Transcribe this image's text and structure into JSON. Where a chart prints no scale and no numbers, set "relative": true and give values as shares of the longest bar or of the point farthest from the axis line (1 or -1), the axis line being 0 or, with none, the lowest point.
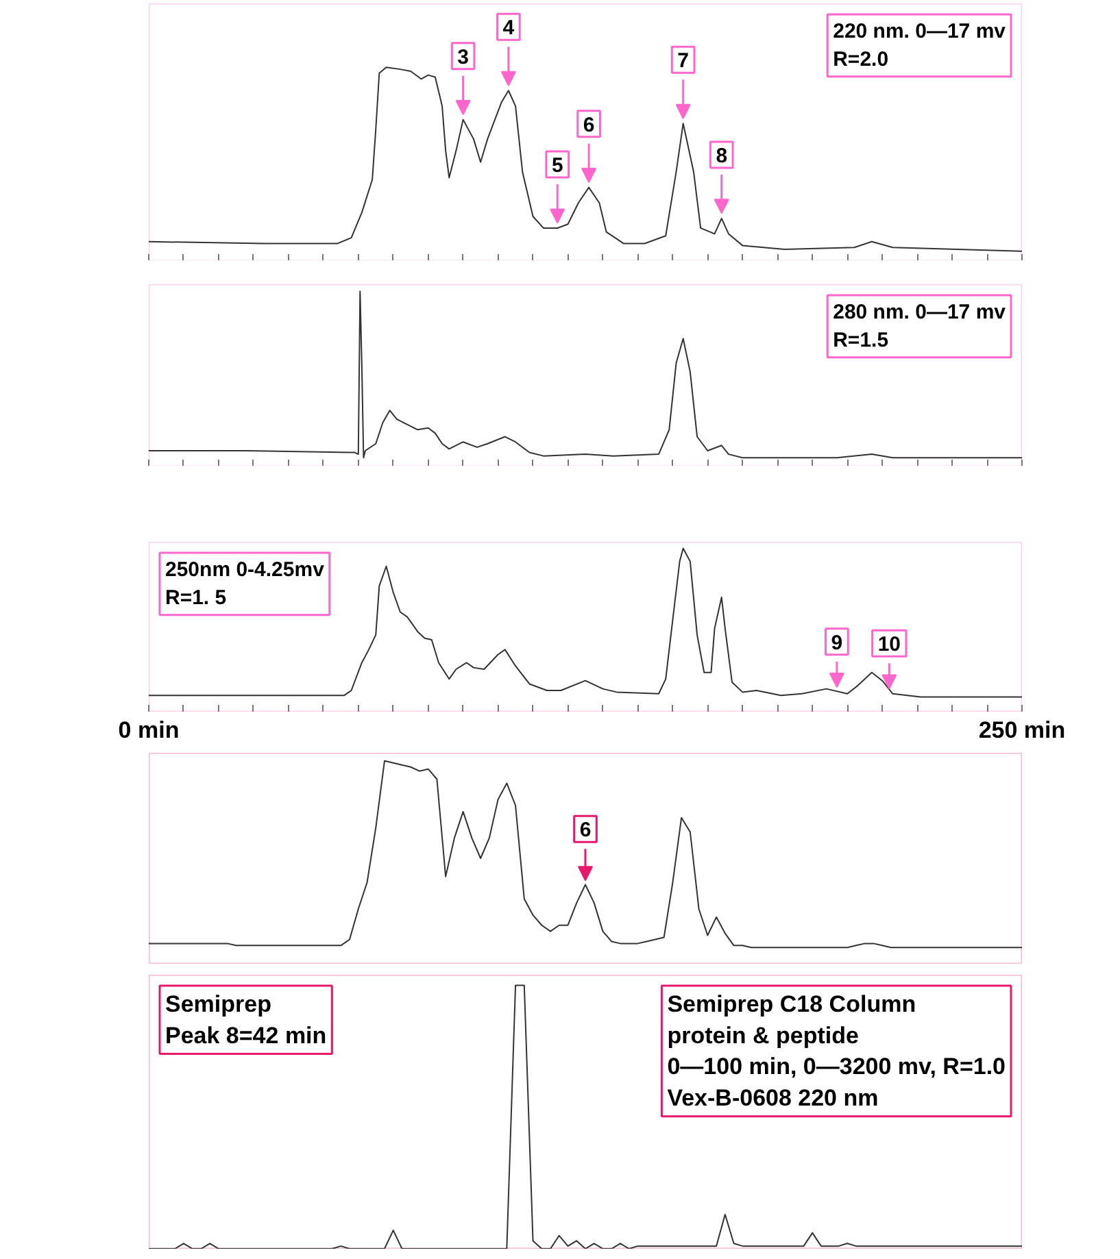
{
  "chart_data": [
    {
      "type": "line",
      "relative": true,
      "xlim": [
        0,
        250
      ],
      "xticks": [
        0,
        10,
        20,
        30,
        40,
        50,
        60,
        70,
        80,
        90,
        100,
        110,
        120,
        130,
        140,
        150,
        160,
        170,
        180,
        190,
        200,
        210,
        220,
        230,
        240,
        250
      ],
      "tick_labels": false,
      "x": [
        0,
        33,
        54,
        58,
        61,
        64,
        65,
        66,
        68,
        72,
        75,
        78,
        80,
        82,
        84,
        85,
        86,
        88,
        90,
        93,
        95,
        97,
        101,
        103,
        105,
        107,
        110,
        113,
        117,
        120,
        123,
        126,
        129,
        131,
        136,
        142,
        148,
        151,
        153,
        156,
        158,
        162,
        164,
        166,
        170,
        182,
        202,
        207,
        213,
        250
      ],
      "series": [
        {
          "color": "#333333",
          "values": [
            0.1,
            0.09,
            0.09,
            0.12,
            0.25,
            0.42,
            0.68,
            0.97,
            1.0,
            0.99,
            0.98,
            0.94,
            0.96,
            0.95,
            0.8,
            0.57,
            0.43,
            0.57,
            0.73,
            0.63,
            0.51,
            0.63,
            0.82,
            0.88,
            0.8,
            0.46,
            0.23,
            0.17,
            0.17,
            0.19,
            0.3,
            0.38,
            0.3,
            0.15,
            0.09,
            0.09,
            0.13,
            0.46,
            0.71,
            0.46,
            0.17,
            0.14,
            0.22,
            0.14,
            0.08,
            0.06,
            0.07,
            0.1,
            0.07,
            0.05
          ]
        }
      ],
      "annotations": [
        "220 nm. 0—17 mv\nR=2.0",
        {
          "text": "3",
          "x": 90,
          "y": 0.73
        },
        {
          "text": "4",
          "x": 103,
          "y": 0.88
        },
        {
          "text": "5",
          "x": 117,
          "y": 0.17
        },
        {
          "text": "6",
          "x": 126,
          "y": 0.38
        },
        {
          "text": "7",
          "x": 153,
          "y": 0.71
        },
        {
          "text": "8",
          "x": 164,
          "y": 0.22
        }
      ]
    },
    {
      "type": "line",
      "relative": true,
      "xlim": [
        0,
        250
      ],
      "xticks": [
        0,
        10,
        20,
        30,
        40,
        50,
        60,
        70,
        80,
        90,
        100,
        110,
        120,
        130,
        140,
        150,
        160,
        170,
        180,
        190,
        200,
        210,
        220,
        230,
        240,
        250
      ],
      "tick_labels": false,
      "x": [
        0,
        28,
        59,
        60,
        60.5,
        61,
        61.5,
        62,
        65,
        67,
        69,
        71,
        73,
        77,
        80,
        82,
        84,
        86,
        90,
        94,
        97,
        102,
        105,
        109,
        113,
        125,
        133,
        146,
        149,
        151,
        153,
        155,
        157,
        160,
        164,
        166,
        170,
        197,
        207,
        213,
        250
      ],
      "series": [
        {
          "color": "#333333",
          "values": [
            0.09,
            0.09,
            0.08,
            0.07,
            1.0,
            0.58,
            0.05,
            0.09,
            0.13,
            0.25,
            0.32,
            0.27,
            0.25,
            0.21,
            0.22,
            0.19,
            0.13,
            0.1,
            0.14,
            0.11,
            0.13,
            0.17,
            0.14,
            0.08,
            0.06,
            0.07,
            0.06,
            0.07,
            0.21,
            0.59,
            0.73,
            0.54,
            0.17,
            0.09,
            0.12,
            0.07,
            0.05,
            0.05,
            0.07,
            0.05,
            0.05
          ]
        }
      ],
      "annotations": [
        "280 nm. 0—17 mv\nR=1.5"
      ]
    },
    {
      "type": "line",
      "relative": true,
      "xlim": [
        0,
        250
      ],
      "xticks": [
        {
          "value": 0,
          "label": "0 min"
        },
        {
          "value": 10,
          "label": null
        },
        {
          "value": 20,
          "label": null
        },
        {
          "value": 30,
          "label": null
        },
        {
          "value": 40,
          "label": null
        },
        {
          "value": 50,
          "label": null
        },
        {
          "value": 60,
          "label": null
        },
        {
          "value": 70,
          "label": null
        },
        {
          "value": 80,
          "label": null
        },
        {
          "value": 90,
          "label": null
        },
        {
          "value": 100,
          "label": null
        },
        {
          "value": 110,
          "label": null
        },
        {
          "value": 120,
          "label": null
        },
        {
          "value": 130,
          "label": null
        },
        {
          "value": 140,
          "label": null
        },
        {
          "value": 150,
          "label": null
        },
        {
          "value": 160,
          "label": null
        },
        {
          "value": 170,
          "label": null
        },
        {
          "value": 180,
          "label": null
        },
        {
          "value": 190,
          "label": null
        },
        {
          "value": 200,
          "label": null
        },
        {
          "value": 210,
          "label": null
        },
        {
          "value": 220,
          "label": null
        },
        {
          "value": 230,
          "label": null
        },
        {
          "value": 240,
          "label": null
        },
        {
          "value": 250,
          "label": "250 min"
        }
      ],
      "tick_labels": "x",
      "x": [
        0,
        56,
        58,
        61,
        63,
        65,
        66,
        68,
        70,
        72,
        74,
        77,
        79,
        81,
        83,
        86,
        88,
        91,
        93,
        96,
        100,
        102,
        105,
        109,
        114,
        118,
        125,
        130,
        134,
        146,
        148,
        150,
        152,
        153,
        155,
        157,
        159,
        161,
        162,
        164,
        165,
        167,
        170,
        174,
        181,
        187,
        194,
        200,
        203,
        207,
        210,
        213,
        221,
        250
      ],
      "series": [
        {
          "color": "#333333",
          "values": [
            0.1,
            0.1,
            0.13,
            0.3,
            0.38,
            0.47,
            0.77,
            0.89,
            0.73,
            0.61,
            0.58,
            0.49,
            0.45,
            0.44,
            0.3,
            0.2,
            0.26,
            0.3,
            0.27,
            0.26,
            0.35,
            0.38,
            0.28,
            0.17,
            0.13,
            0.13,
            0.19,
            0.14,
            0.12,
            0.11,
            0.2,
            0.56,
            0.92,
            1.0,
            0.92,
            0.47,
            0.24,
            0.24,
            0.51,
            0.7,
            0.51,
            0.18,
            0.12,
            0.13,
            0.1,
            0.11,
            0.14,
            0.11,
            0.16,
            0.24,
            0.19,
            0.11,
            0.09,
            0.09
          ]
        }
      ],
      "annotations": [
        "250nm 0-4.25mv\nR=1. 5",
        {
          "text": "9",
          "x": 197,
          "y": 0.13
        },
        {
          "text": "10",
          "x": 212,
          "y": 0.12
        }
      ]
    },
    {
      "type": "line",
      "relative": true,
      "categories": [
        null,
        null,
        null,
        null,
        null,
        null,
        null,
        null,
        null,
        null,
        null,
        null,
        null,
        null,
        null,
        null,
        null,
        null,
        null,
        null,
        null,
        null,
        null,
        null,
        null,
        null,
        null,
        null,
        null,
        null,
        null,
        null,
        null,
        null,
        null,
        null,
        null,
        null,
        null,
        null,
        null,
        null,
        null,
        null,
        null,
        null,
        null,
        null,
        null,
        null,
        null,
        null,
        null,
        null,
        null,
        null,
        null,
        null,
        null,
        null,
        null,
        null,
        null,
        null,
        null,
        null,
        null,
        null,
        null,
        null,
        null,
        null,
        null,
        null,
        null,
        null,
        null,
        null,
        null,
        null,
        null,
        null,
        null,
        null,
        null,
        null,
        null,
        null,
        null,
        null,
        null,
        null,
        null,
        null,
        null,
        null,
        null,
        null,
        null,
        null,
        null
      ],
      "series": [
        {
          "color": "#333333",
          "values": [
            0.1,
            0.1,
            0.1,
            0.1,
            0.1,
            0.1,
            0.1,
            0.1,
            0.1,
            0.1,
            0.09,
            0.09,
            0.09,
            0.09,
            0.09,
            0.09,
            0.09,
            0.09,
            0.09,
            0.09,
            0.09,
            0.09,
            0.09,
            0.12,
            0.27,
            0.4,
            0.67,
            1.0,
            0.99,
            0.98,
            0.97,
            0.95,
            0.96,
            0.91,
            0.43,
            0.62,
            0.75,
            0.62,
            0.52,
            0.62,
            0.81,
            0.89,
            0.78,
            0.32,
            0.24,
            0.19,
            0.16,
            0.19,
            0.19,
            0.3,
            0.39,
            0.3,
            0.16,
            0.11,
            0.1,
            0.1,
            0.1,
            0.11,
            0.12,
            0.13,
            0.4,
            0.72,
            0.65,
            0.27,
            0.14,
            0.23,
            0.15,
            0.09,
            0.09,
            0.08,
            0.08,
            0.08,
            0.08,
            0.08,
            0.08,
            0.08,
            0.08,
            0.08,
            0.08,
            0.08,
            0.08,
            0.09,
            0.1,
            0.1,
            0.09,
            0.08,
            0.08,
            0.08,
            0.08,
            0.08,
            0.08,
            0.08,
            0.08,
            0.08,
            0.08,
            0.08,
            0.08,
            0.08,
            0.08,
            0.08,
            0.08
          ]
        }
      ],
      "annotations": [
        {
          "text": "6",
          "y": 0.39
        }
      ]
    },
    {
      "type": "line",
      "relative": true,
      "categories": [
        null,
        null,
        null,
        null,
        null,
        null,
        null,
        null,
        null,
        null,
        null,
        null,
        null,
        null,
        null,
        null,
        null,
        null,
        null,
        null,
        null,
        null,
        null,
        null,
        null,
        null,
        null,
        null,
        null,
        null,
        null,
        null,
        null,
        null,
        null,
        null,
        null,
        null,
        null,
        null,
        null,
        null,
        null,
        null,
        null,
        null,
        null,
        null,
        null,
        null,
        null,
        null,
        null,
        null,
        null,
        null,
        null,
        null,
        null,
        null,
        null,
        null,
        null,
        null,
        null,
        null,
        null,
        null,
        null,
        null,
        null,
        null,
        null,
        null,
        null,
        null,
        null,
        null,
        null,
        null,
        null,
        null,
        null,
        null,
        null,
        null,
        null,
        null,
        null,
        null,
        null,
        null,
        null,
        null,
        null,
        null,
        null,
        null,
        null,
        null,
        null
      ],
      "series": [
        {
          "color": "#333333",
          "values": [
            0,
            0,
            0,
            0,
            0.02,
            0,
            0,
            0.02,
            0,
            0,
            0,
            0,
            0,
            0,
            0,
            0,
            0,
            0,
            0,
            0,
            0,
            0,
            0.01,
            0,
            0,
            0,
            0,
            0,
            0.07,
            0,
            0,
            0,
            0,
            0,
            0,
            0,
            0,
            0,
            0,
            0,
            0,
            0,
            1.0,
            1.0,
            0.03,
            0,
            0,
            0.05,
            0.01,
            0.03,
            0,
            0.02,
            0,
            0,
            0.02,
            0,
            0.01,
            0.01,
            0.01,
            0.01,
            0.01,
            0.01,
            0.01,
            0.01,
            0.01,
            0.01,
            0.13,
            0.02,
            0.01,
            0.01,
            0.01,
            0.01,
            0.01,
            0.01,
            0.01,
            0.01,
            0.06,
            0.01,
            0.01,
            0.01,
            0.02,
            0.01,
            0.01,
            0.01,
            0.01,
            0.01,
            0.01,
            0.01,
            0.01,
            0.01,
            0.01,
            0.01,
            0.01,
            0.01,
            0.01,
            0.01,
            0.01,
            0.01,
            0.01,
            0.01,
            0.01
          ]
        }
      ],
      "annotations": [
        "Semiprep\nPeak 8=42 min",
        "Semiprep C18 Column\nprotein & peptide\n0—100 min, 0—3200 mv, R=1.0\nVex-B-0608    220 nm"
      ]
    }
  ]
}
